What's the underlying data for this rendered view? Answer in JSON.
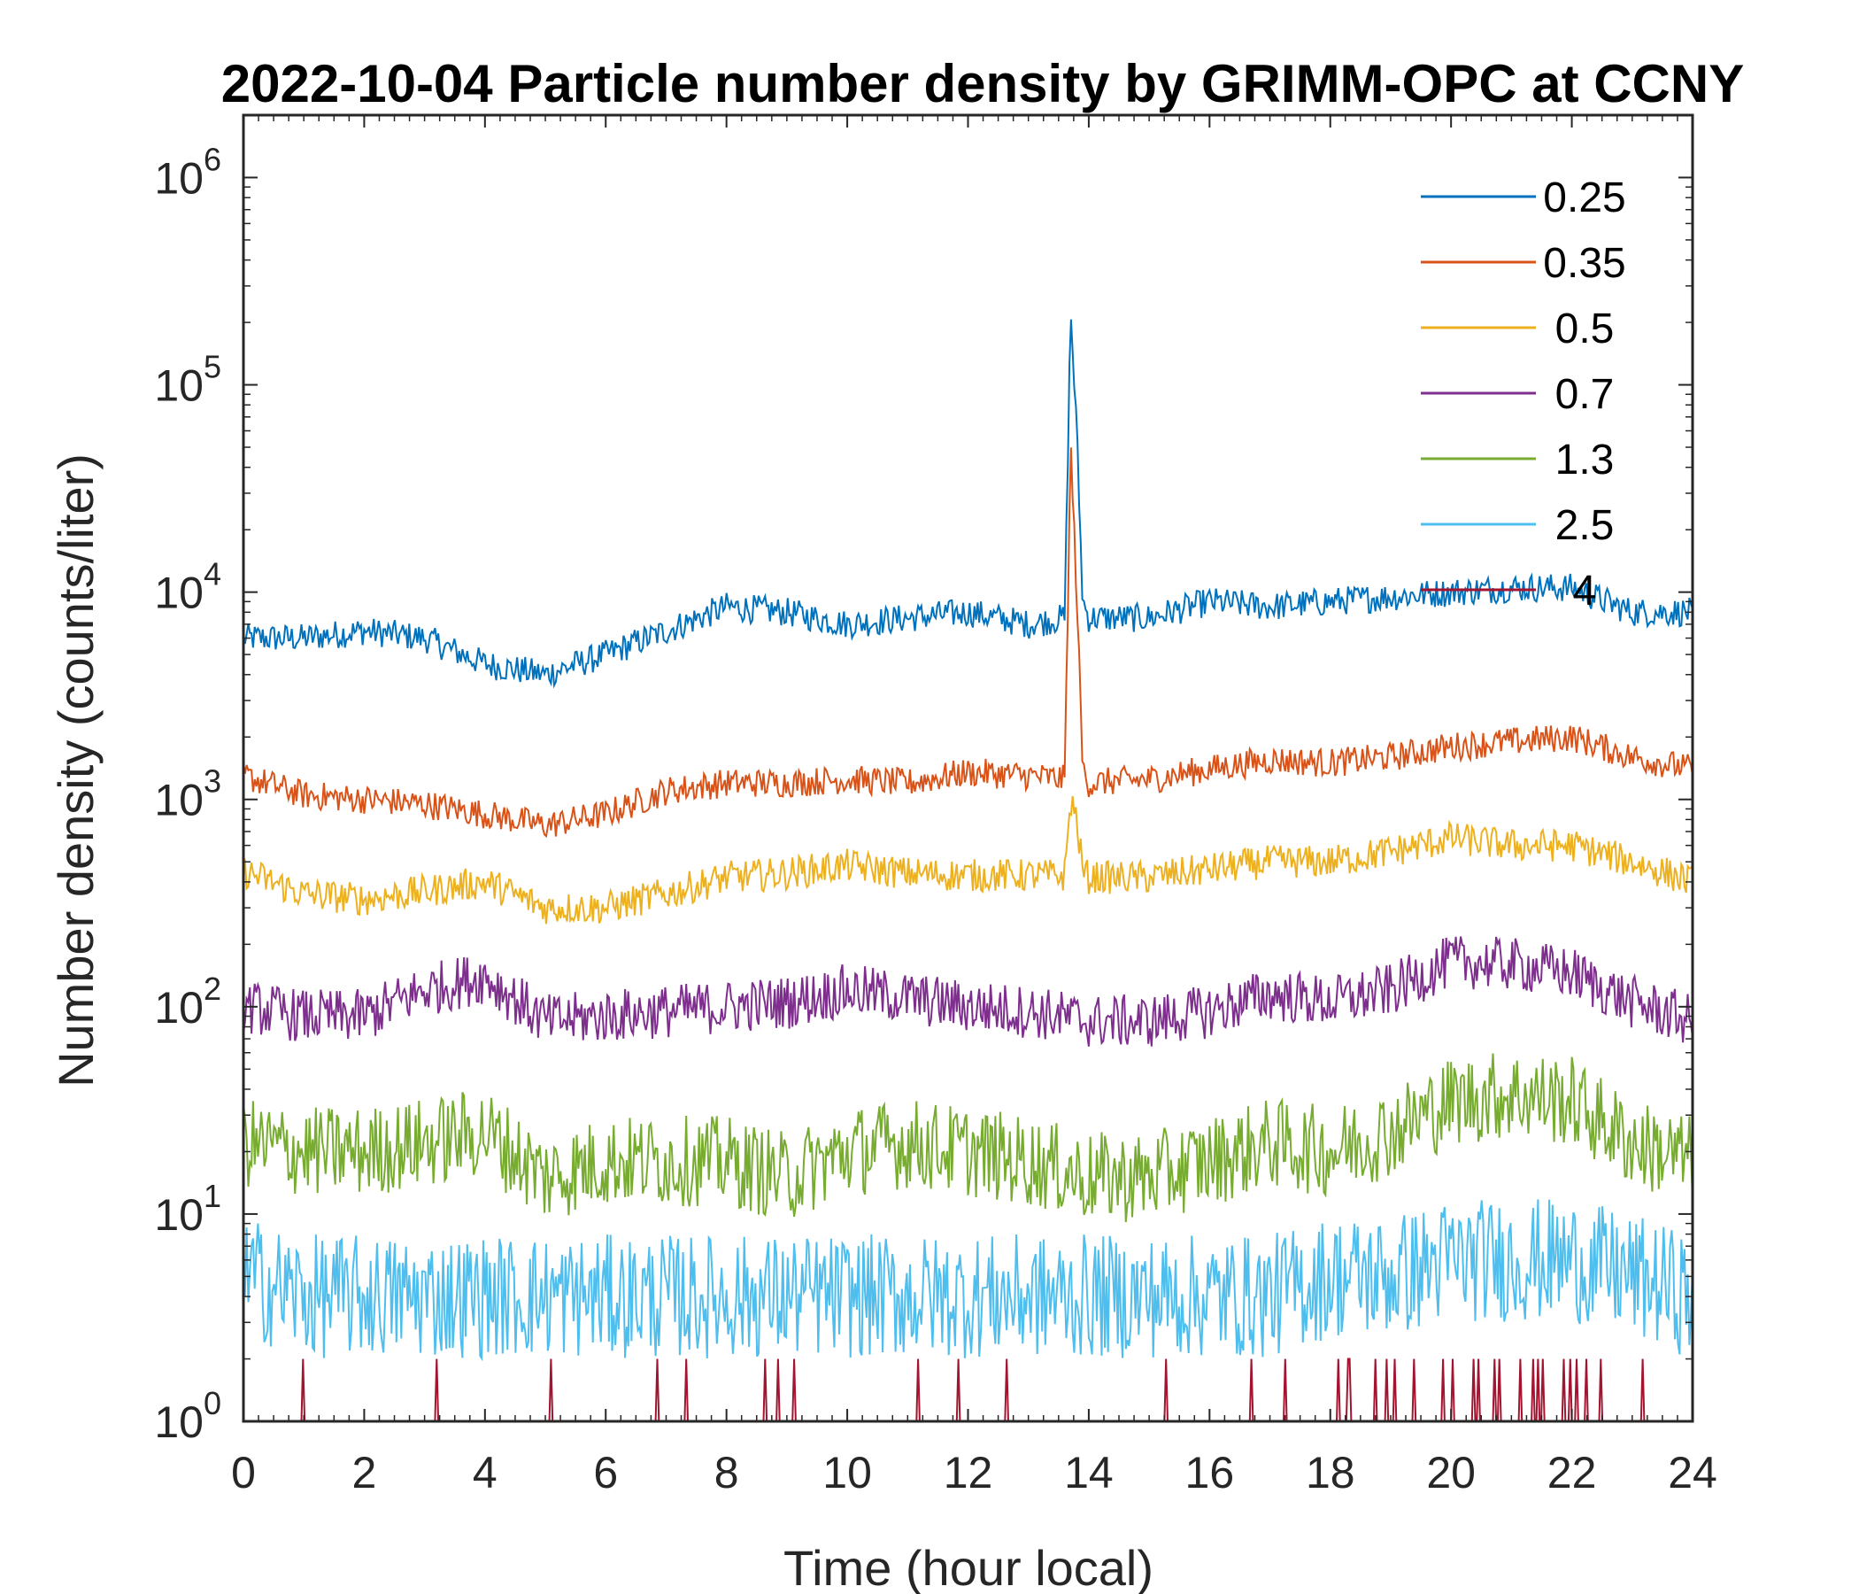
{
  "chart_data": {
    "type": "line",
    "title": "2022-10-04 Particle number density by GRIMM-OPC at CCNY",
    "xlabel": "Time (hour local)",
    "ylabel": "Number density (counts/liter)",
    "xlim": [
      0,
      24
    ],
    "x_ticks": [
      0,
      2,
      4,
      6,
      8,
      10,
      12,
      14,
      16,
      18,
      20,
      22,
      24
    ],
    "x_tick_labels": [
      "0",
      "2",
      "4",
      "6",
      "8",
      "10",
      "12",
      "14",
      "16",
      "18",
      "20",
      "22",
      "24"
    ],
    "yscale": "log",
    "ylim": [
      1,
      2000000
    ],
    "y_tick_bases": [
      "10",
      "10",
      "10",
      "10",
      "10",
      "10",
      "10"
    ],
    "y_tick_exponents": [
      "0",
      "1",
      "2",
      "3",
      "4",
      "5",
      "6"
    ],
    "legend_position": "top-right",
    "grid": false,
    "series": [
      {
        "name": "0.25",
        "color": "#0072BD",
        "x": [
          0,
          1,
          2,
          3,
          4,
          5,
          6,
          7,
          8,
          9,
          10,
          11,
          12,
          13,
          13.6,
          13.7,
          13.8,
          13.9,
          14,
          15,
          16,
          17,
          18,
          19,
          20,
          21,
          22,
          23,
          24
        ],
        "y": [
          6000,
          6000,
          6500,
          6000,
          4500,
          4000,
          5000,
          6500,
          8500,
          8000,
          7000,
          7500,
          8000,
          7000,
          7500,
          230000,
          60000,
          9000,
          7500,
          7500,
          9000,
          8500,
          9000,
          9500,
          10000,
          10500,
          10500,
          8000,
          8000
        ]
      },
      {
        "name": "0.35",
        "color": "#D95319",
        "x": [
          0,
          1,
          2,
          3,
          4,
          5,
          6,
          7,
          8,
          9,
          10,
          11,
          12,
          13,
          13.6,
          13.7,
          13.8,
          13.9,
          14,
          15,
          16,
          17,
          18,
          19,
          20,
          21,
          22,
          23,
          24
        ],
        "y": [
          1300,
          1050,
          1000,
          950,
          850,
          750,
          850,
          1100,
          1200,
          1200,
          1250,
          1200,
          1350,
          1300,
          1250,
          50000,
          10000,
          1400,
          1200,
          1250,
          1400,
          1550,
          1500,
          1600,
          1800,
          1900,
          2000,
          1600,
          1400
        ]
      },
      {
        "name": "0.5",
        "color": "#EDB120",
        "x": [
          0,
          1,
          2,
          3,
          4,
          5,
          6,
          7,
          8,
          9,
          10,
          11,
          12,
          13,
          13.6,
          13.7,
          13.8,
          13.9,
          14,
          15,
          16,
          17,
          18,
          19,
          20,
          21,
          22,
          23,
          24
        ],
        "y": [
          450,
          350,
          330,
          360,
          400,
          300,
          300,
          350,
          420,
          440,
          480,
          440,
          430,
          430,
          430,
          1000,
          800,
          450,
          420,
          420,
          460,
          500,
          500,
          560,
          650,
          600,
          600,
          500,
          400
        ]
      },
      {
        "name": "0.7",
        "color": "#7E2F8E",
        "x": [
          0,
          1,
          2,
          3,
          4,
          5,
          6,
          7,
          8,
          9,
          10,
          11,
          12,
          13,
          14,
          15,
          16,
          17,
          18,
          19,
          20,
          21,
          22,
          23,
          24
        ],
        "y": [
          100,
          90,
          90,
          120,
          140,
          85,
          90,
          95,
          100,
          105,
          120,
          110,
          100,
          95,
          85,
          85,
          95,
          115,
          105,
          120,
          165,
          160,
          145,
          105,
          85
        ]
      },
      {
        "name": "1.3",
        "color": "#77AC30",
        "x": [
          0,
          1,
          2,
          3,
          4,
          5,
          6,
          7,
          8,
          9,
          10,
          11,
          12,
          13,
          14,
          15,
          16,
          17,
          18,
          19,
          20,
          21,
          22,
          23,
          24
        ],
        "y": [
          22,
          20,
          20,
          22,
          25,
          15,
          18,
          18,
          18,
          15,
          20,
          22,
          20,
          18,
          15,
          15,
          18,
          22,
          20,
          25,
          35,
          38,
          35,
          22,
          18
        ]
      },
      {
        "name": "2.5",
        "color": "#4DBEEE",
        "x": [
          0,
          1,
          2,
          3,
          4,
          5,
          6,
          7,
          8,
          9,
          10,
          11,
          12,
          13,
          14,
          15,
          16,
          17,
          18,
          19,
          20,
          21,
          22,
          23,
          24
        ],
        "y": [
          5,
          4,
          4,
          4,
          4,
          4,
          4,
          4,
          4,
          4,
          4,
          4,
          4,
          4,
          4,
          4,
          4,
          4,
          5,
          5,
          6,
          6,
          6,
          5,
          4
        ]
      },
      {
        "name": "4",
        "color": "#A2142F",
        "x": [
          0,
          1,
          2,
          3,
          4,
          5,
          6,
          7,
          8,
          9,
          10,
          11,
          12,
          13,
          14,
          15,
          16,
          17,
          18,
          19,
          20,
          21,
          22,
          23,
          24
        ],
        "y": [
          1,
          1,
          1,
          1,
          1,
          1,
          1,
          1,
          1,
          1,
          1,
          1,
          1,
          1,
          1,
          1,
          1,
          1,
          1,
          1,
          1.2,
          1.3,
          1.2,
          1,
          1
        ]
      }
    ]
  }
}
